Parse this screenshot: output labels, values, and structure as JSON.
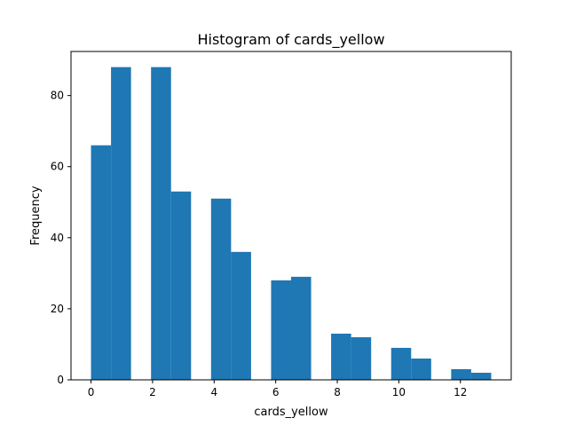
{
  "chart_data": {
    "type": "bar",
    "title": "Histogram of cards_yellow",
    "xlabel": "cards_yellow",
    "ylabel": "Frequency",
    "xlim": [
      -0.65,
      13.65
    ],
    "ylim": [
      0,
      92.4
    ],
    "bin_edges": [
      0.0,
      0.65,
      1.3,
      1.95,
      2.6,
      3.25,
      3.9,
      4.55,
      5.2,
      5.85,
      6.5,
      7.15,
      7.8,
      8.45,
      9.1,
      9.75,
      10.4,
      11.05,
      11.7,
      12.35,
      13.0
    ],
    "values": [
      66,
      88,
      0,
      88,
      53,
      0,
      51,
      36,
      0,
      28,
      29,
      0,
      13,
      12,
      0,
      9,
      6,
      0,
      3,
      2
    ],
    "xticks": [
      0,
      2,
      4,
      6,
      8,
      10,
      12
    ],
    "xtick_labels": [
      "0",
      "2",
      "4",
      "6",
      "8",
      "10",
      "12"
    ],
    "yticks": [
      0,
      20,
      40,
      60,
      80
    ],
    "ytick_labels": [
      "0",
      "20",
      "40",
      "60",
      "80"
    ],
    "bar_color": "#1f77b4",
    "grid": false,
    "legend": "none"
  }
}
